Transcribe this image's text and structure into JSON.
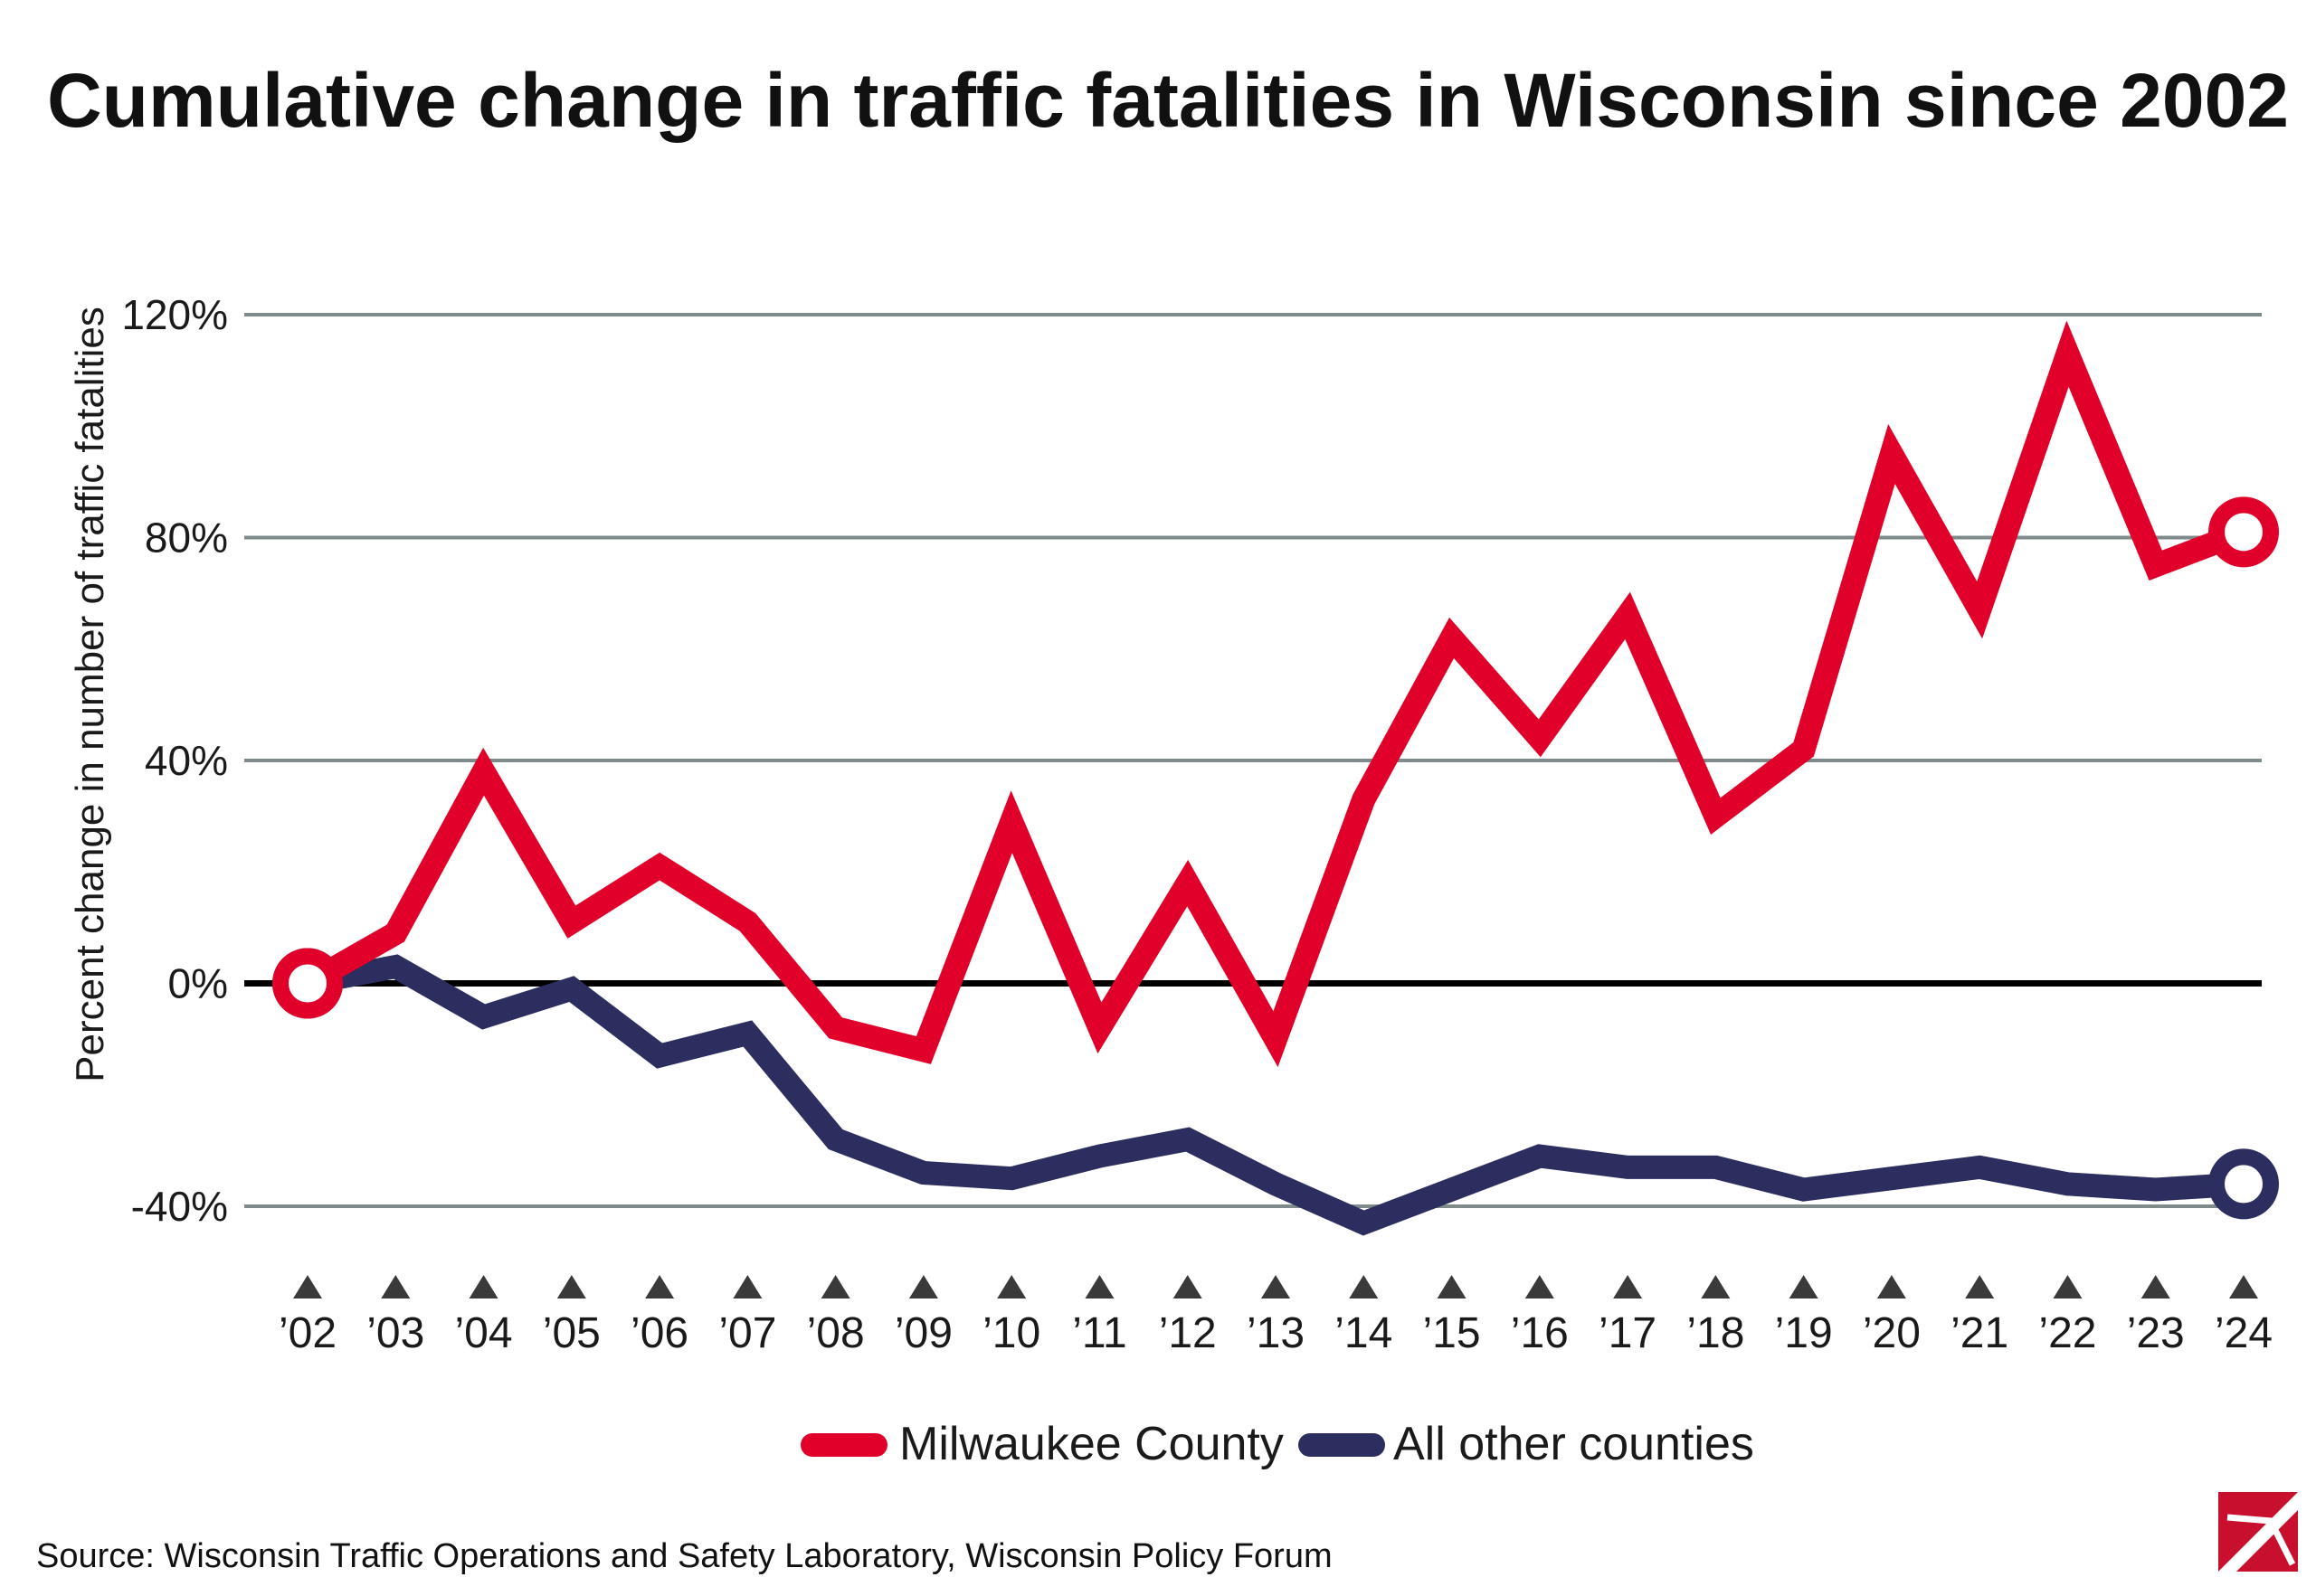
{
  "title": "Cumulative change in traffic fatalities in Wisconsin since 2002",
  "source": "Source: Wisconsin Traffic Operations and Safety Laboratory, Wisconsin Policy Forum",
  "colors": {
    "milwaukee": "#E0002A",
    "other": "#2B2E5E",
    "grid": "#7F8A8A",
    "zero_line": "#000000",
    "logo": "#C8102E"
  },
  "chart_data": {
    "type": "line",
    "title": "Cumulative change in traffic fatalities in Wisconsin since 2002",
    "xlabel": "",
    "ylabel": "Percent change in number of traffic fatalities",
    "categories": [
      "’02",
      "’03",
      "’04",
      "’05",
      "’06",
      "’07",
      "’08",
      "’09",
      "’10",
      "’11",
      "’12",
      "’13",
      "’14",
      "’15",
      "’16",
      "’17",
      "’18",
      "’19",
      "’20",
      "’21",
      "’22",
      "’23",
      "’24"
    ],
    "ylim": [
      -40,
      120
    ],
    "yticks": [
      -40,
      0,
      40,
      80,
      120
    ],
    "ytick_labels": [
      "-40%",
      "0%",
      "40%",
      "80%",
      "120%"
    ],
    "grid": true,
    "legend_position": "bottom",
    "series": [
      {
        "name": "Milwaukee County",
        "color": "#E0002A",
        "values": [
          0,
          9,
          38,
          11,
          21,
          11,
          -8,
          -12,
          29,
          -8,
          18,
          -10,
          33,
          62,
          44,
          66,
          30,
          42,
          95,
          67,
          113,
          75,
          81
        ]
      },
      {
        "name": "All other counties",
        "color": "#2B2E5E",
        "values": [
          0,
          3,
          -6,
          -1,
          -13,
          -9,
          -28,
          -34,
          -35,
          -31,
          -28,
          -36,
          -43,
          -37,
          -31,
          -33,
          -33,
          -37,
          -35,
          -33,
          -36,
          -37,
          -36
        ]
      }
    ]
  }
}
